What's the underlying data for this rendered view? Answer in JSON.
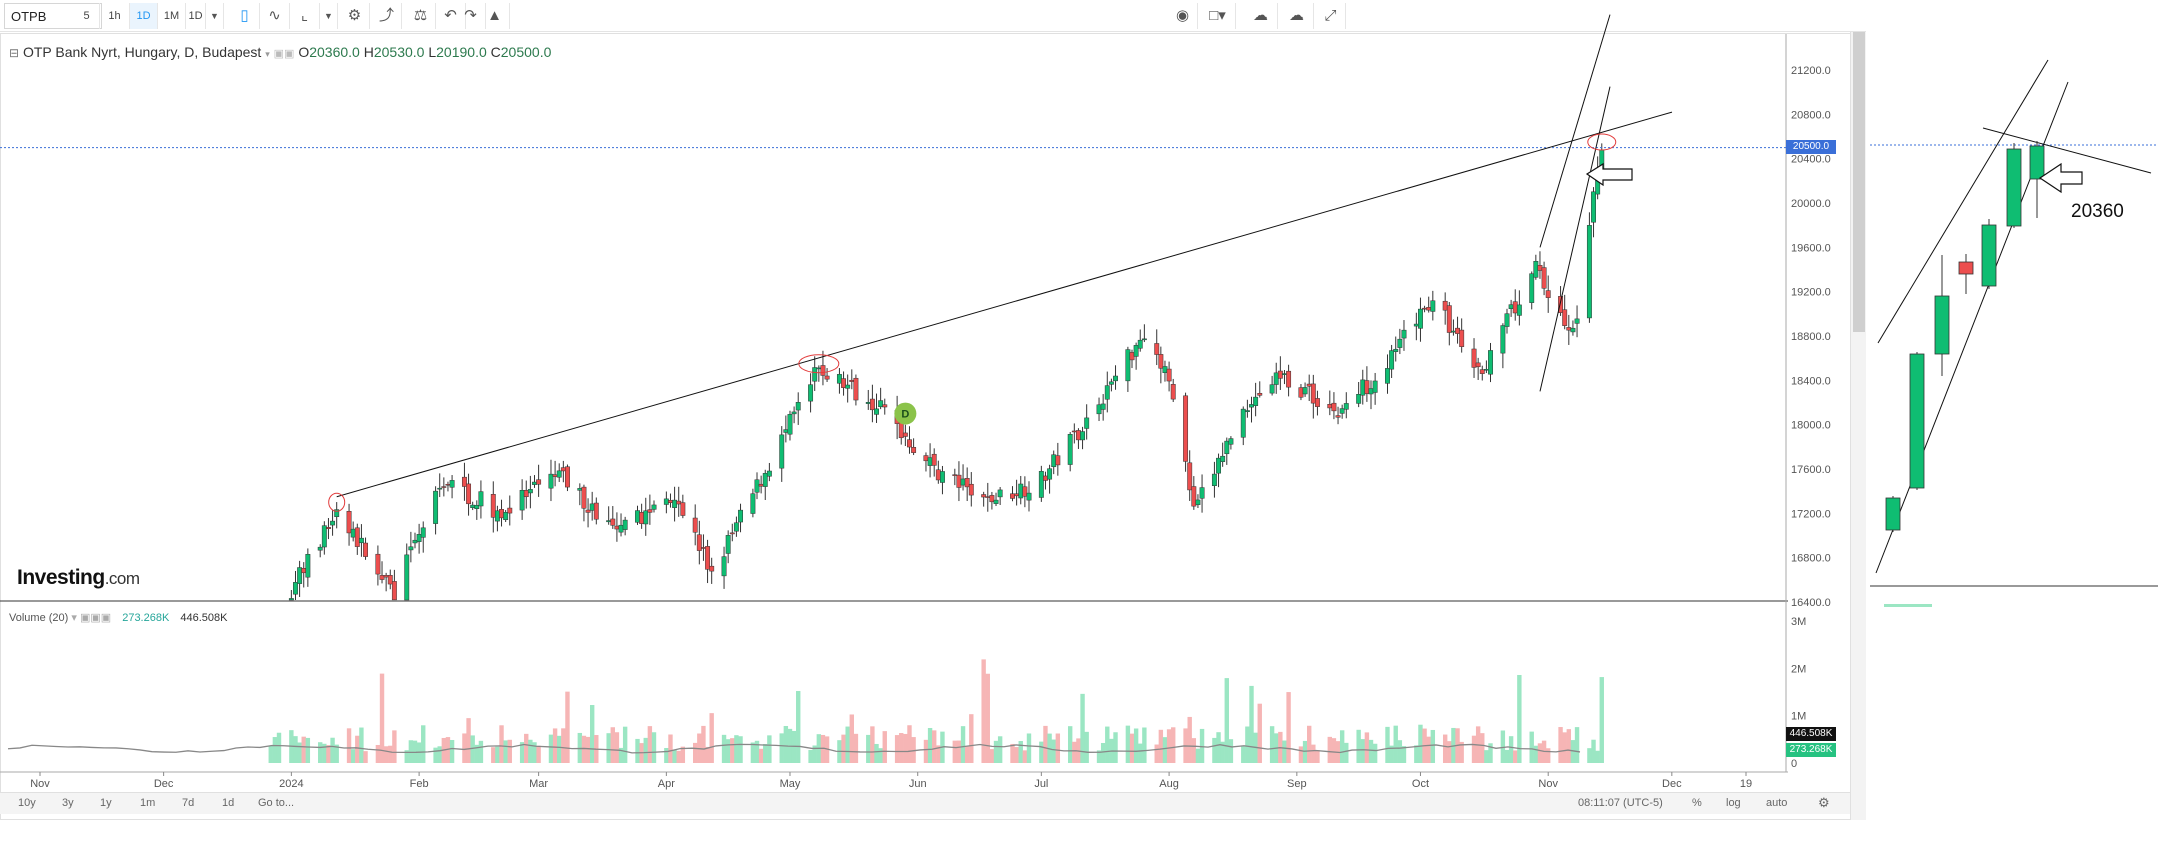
{
  "toolbar": {
    "symbol": "OTPB",
    "intervals": [
      "5",
      "1h",
      "1D",
      "1M",
      "1D"
    ],
    "active_interval": "1D",
    "icons": [
      "candlestick-icon",
      "line-chart-icon",
      "draw-tool-icon",
      "dropdown-icon",
      "settings-icon",
      "indicators-icon",
      "compare-icon",
      "undo-icon",
      "redo-icon",
      "alert-icon",
      "camera-icon",
      "box-icon",
      "cloud-download-icon",
      "cloud-upload-icon",
      "fullscreen-icon"
    ]
  },
  "legend": {
    "title": "OTP Bank Nyrt, Hungary, D, Budapest",
    "open_label": "O",
    "open": "20360.0",
    "high_label": "H",
    "high": "20530.0",
    "low_label": "L",
    "low": "20190.0",
    "close_label": "C",
    "close": "20500.0"
  },
  "volume_legend": {
    "title": "Volume (20)",
    "value1": "273.268K",
    "value2": "446.508K"
  },
  "logo": {
    "name": "Investing",
    "domain": ".com"
  },
  "price_tags": {
    "last": "20500.0",
    "vol_ma": "446.508K",
    "vol": "273.268K"
  },
  "marker": {
    "letter": "D"
  },
  "bottom_bar": {
    "ranges": [
      "10y",
      "3y",
      "1y",
      "1m",
      "7d",
      "1d"
    ],
    "goto": "Go to...",
    "time": "08:11:07 (UTC-5)",
    "pct": "%",
    "log": "log",
    "auto": "auto"
  },
  "zoom_annotation": {
    "price": "20360"
  },
  "colors": {
    "up": "#0fbd72",
    "down": "#ec4e4e",
    "vol_up": "#9be6c3",
    "vol_down": "#f6b5b5",
    "last_line": "#3a6fd8"
  },
  "chart_data": {
    "type": "candlestick",
    "title": "OTP Bank Nyrt, Hungary, D, Budapest",
    "ylim": [
      16400,
      21400
    ],
    "y_ticks": [
      21200,
      20800,
      20400,
      20000,
      19600,
      19200,
      18800,
      18400,
      18000,
      17600,
      17200,
      16800,
      16400
    ],
    "y_tick_labels": [
      "21200.0",
      "20800.0",
      "20400.0",
      "20000.0",
      "19600.0",
      "19200.0",
      "18800.0",
      "18400.0",
      "18000.0",
      "17600.0",
      "17200.0",
      "16800.0",
      "16400.0"
    ],
    "volume_ticks": [
      3000000,
      2000000,
      1000000,
      0
    ],
    "volume_tick_labels": [
      "3M",
      "2M",
      "1M",
      "0"
    ],
    "x_tick_labels": [
      "Nov",
      "Dec",
      "2024",
      "Feb",
      "Mar",
      "Apr",
      "May",
      "Jun",
      "Jul",
      "Aug",
      "Sep",
      "Oct",
      "Nov",
      "Dec",
      "19"
    ],
    "trend_points": [
      [
        "2023-12-27",
        16200
      ],
      [
        "2024-01-12",
        17200
      ],
      [
        "2024-01-26",
        16500
      ],
      [
        "2024-02-07",
        17500
      ],
      [
        "2024-02-21",
        17200
      ],
      [
        "2024-03-06",
        17550
      ],
      [
        "2024-03-20",
        17000
      ],
      [
        "2024-04-03",
        17400
      ],
      [
        "2024-04-12",
        16650
      ],
      [
        "2024-04-26",
        17650
      ],
      [
        "2024-05-08",
        18500
      ],
      [
        "2024-05-22",
        18200
      ],
      [
        "2024-06-05",
        17600
      ],
      [
        "2024-06-17",
        17300
      ],
      [
        "2024-07-01",
        17500
      ],
      [
        "2024-07-15",
        18200
      ],
      [
        "2024-07-26",
        18850
      ],
      [
        "2024-08-02",
        18300
      ],
      [
        "2024-08-07",
        17200
      ],
      [
        "2024-08-20",
        18200
      ],
      [
        "2024-08-28",
        18450
      ],
      [
        "2024-09-11",
        18100
      ],
      [
        "2024-09-24",
        18600
      ],
      [
        "2024-10-04",
        19150
      ],
      [
        "2024-10-15",
        18450
      ],
      [
        "2024-10-29",
        19400
      ],
      [
        "2024-11-07",
        18800
      ],
      [
        "2024-11-14",
        20500
      ]
    ],
    "last_close": 20500
  }
}
